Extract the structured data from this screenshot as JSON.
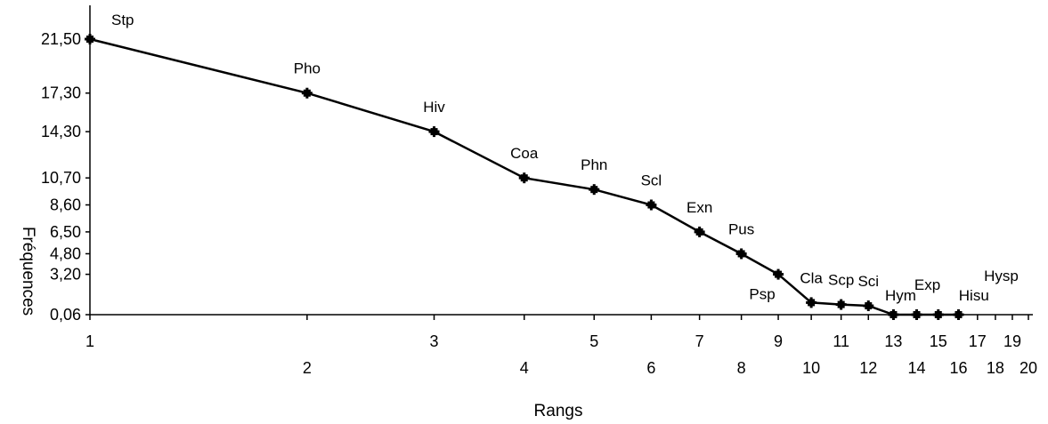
{
  "chart_data": {
    "type": "line",
    "title": "",
    "xlabel": "Rangs",
    "ylabel": "Fréquences",
    "y_ticks": [
      "21,50",
      "17,30",
      "14,30",
      "10,70",
      "8,60",
      "6,50",
      "4,80",
      "3,20",
      "0,06"
    ],
    "x_ticks": [
      "1",
      "2",
      "3",
      "4",
      "5",
      "6",
      "7",
      "8",
      "9",
      "10",
      "11",
      "12",
      "13",
      "14",
      "15",
      "16",
      "17",
      "18",
      "19",
      "20"
    ],
    "x_scale": "log",
    "series": [
      {
        "labels": [
          "Stp",
          "Pho",
          "Hiv",
          "Coa",
          "Phn",
          "Scl",
          "Exn",
          "Pus",
          "Psp",
          "Cla",
          "Scp",
          "Sci",
          "Hym",
          "Exp",
          "Hisu",
          "Hysp"
        ],
        "x": [
          1,
          2,
          3,
          4,
          5,
          6,
          7,
          8,
          9,
          10,
          11,
          12,
          13,
          14,
          15,
          16
        ],
        "y": [
          21.5,
          17.3,
          14.3,
          10.7,
          9.8,
          8.6,
          6.5,
          4.8,
          3.2,
          1.0,
          0.85,
          0.75,
          0.06,
          0.06,
          0.06,
          0.06
        ]
      }
    ],
    "legend": "none",
    "grid": false
  }
}
